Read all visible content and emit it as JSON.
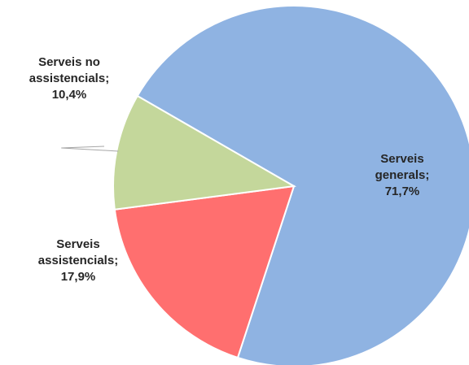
{
  "chart_data": {
    "type": "pie",
    "title": "",
    "slices": [
      {
        "label": "Serveis generals",
        "value": 71.7,
        "display": [
          "Serveis",
          "generals;",
          "71,7%"
        ],
        "color": "#8fb3e2"
      },
      {
        "label": "Serveis assistencials",
        "value": 17.9,
        "display": [
          "Serveis",
          "assistencials;",
          "17,9%"
        ],
        "color": "#ff6f6f"
      },
      {
        "label": "Serveis no assistencials",
        "value": 10.4,
        "display": [
          "Serveis no",
          "assistencials;",
          "10,4%"
        ],
        "color": "#c4d79b"
      }
    ]
  }
}
